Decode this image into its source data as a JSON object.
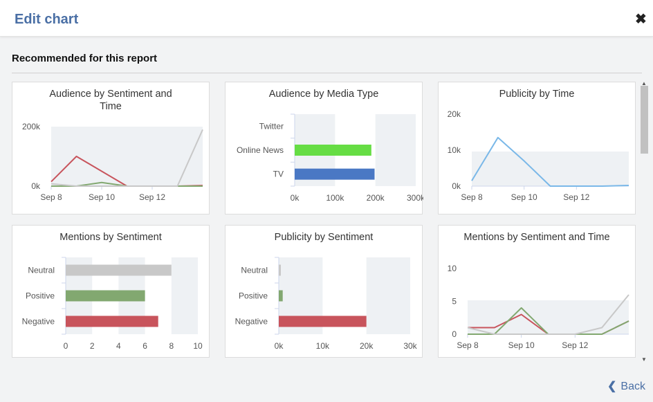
{
  "dialog": {
    "title": "Edit chart",
    "close_icon": "close-icon",
    "section_title": "Recommended for this report",
    "back_label": "Back",
    "back_icon": "chevron-left-icon"
  },
  "colors": {
    "accent": "#4a6fa5",
    "negative": "#c8545c",
    "positive": "#82a870",
    "neutral": "#c8c8c8",
    "online_news": "#66dd44",
    "tv": "#4a78c4",
    "publicity_line": "#7ab8e8",
    "band": "#eef1f4"
  },
  "charts": [
    {
      "title": "Audience by Sentiment and Time",
      "chart_data": {
        "type": "line",
        "x": [
          "Sep 8",
          "Sep 9",
          "Sep 10",
          "Sep 11",
          "Sep 12",
          "Sep 13",
          "Sep 14"
        ],
        "xticks": [
          "Sep 8",
          "Sep 10",
          "Sep 12"
        ],
        "yticks": [
          "0k",
          "200k"
        ],
        "ylim": [
          0,
          200000
        ],
        "series": [
          {
            "key": "negative",
            "values": [
              15000,
              100000,
              50000,
              0,
              0,
              0,
              2000
            ]
          },
          {
            "key": "positive",
            "values": [
              0,
              0,
              12000,
              0,
              0,
              0,
              0
            ]
          },
          {
            "key": "neutral",
            "values": [
              8000,
              0,
              0,
              0,
              0,
              0,
              190000
            ]
          }
        ]
      }
    },
    {
      "title": "Audience by Media Type",
      "chart_data": {
        "type": "bar",
        "orientation": "horizontal",
        "categories": [
          "Twitter",
          "Online News",
          "TV"
        ],
        "values": [
          0,
          190000,
          198000
        ],
        "xticks": [
          "0k",
          "100k",
          "200k",
          "300k"
        ],
        "xlim": [
          0,
          300000
        ]
      }
    },
    {
      "title": "Publicity by Time",
      "chart_data": {
        "type": "line",
        "x": [
          "Sep 8",
          "Sep 9",
          "Sep 10",
          "Sep 11",
          "Sep 12",
          "Sep 13",
          "Sep 14"
        ],
        "xticks": [
          "Sep 8",
          "Sep 10",
          "Sep 12"
        ],
        "yticks": [
          "0k",
          "10k",
          "20k"
        ],
        "ylim": [
          0,
          20000
        ],
        "series": [
          {
            "key": "publicity",
            "values": [
              1500,
              13500,
              7000,
              0,
              0,
              0,
              200
            ]
          }
        ]
      }
    },
    {
      "title": "Mentions by Sentiment",
      "chart_data": {
        "type": "bar",
        "orientation": "horizontal",
        "categories": [
          "Neutral",
          "Positive",
          "Negative"
        ],
        "values": [
          8,
          6,
          7
        ],
        "xticks": [
          "0",
          "2",
          "4",
          "6",
          "8",
          "10"
        ],
        "xlim": [
          0,
          10
        ]
      }
    },
    {
      "title": "Publicity by Sentiment",
      "chart_data": {
        "type": "bar",
        "orientation": "horizontal",
        "categories": [
          "Neutral",
          "Positive",
          "Negative"
        ],
        "values": [
          300,
          900,
          20000
        ],
        "xticks": [
          "0k",
          "10k",
          "20k",
          "30k"
        ],
        "xlim": [
          0,
          30000
        ]
      }
    },
    {
      "title": "Mentions by Sentiment and Time",
      "chart_data": {
        "type": "line",
        "x": [
          "Sep 8",
          "Sep 9",
          "Sep 10",
          "Sep 11",
          "Sep 12",
          "Sep 13",
          "Sep 14"
        ],
        "xticks": [
          "Sep 8",
          "Sep 10",
          "Sep 12"
        ],
        "yticks": [
          "0",
          "5",
          "10"
        ],
        "ylim": [
          0,
          10
        ],
        "series": [
          {
            "key": "negative",
            "values": [
              1,
              1,
              3,
              0,
              0,
              0,
              2
            ]
          },
          {
            "key": "positive",
            "values": [
              0,
              0,
              4,
              0,
              0,
              0,
              2
            ]
          },
          {
            "key": "neutral",
            "values": [
              1,
              0,
              0,
              0,
              0,
              1,
              6
            ]
          }
        ]
      }
    }
  ]
}
